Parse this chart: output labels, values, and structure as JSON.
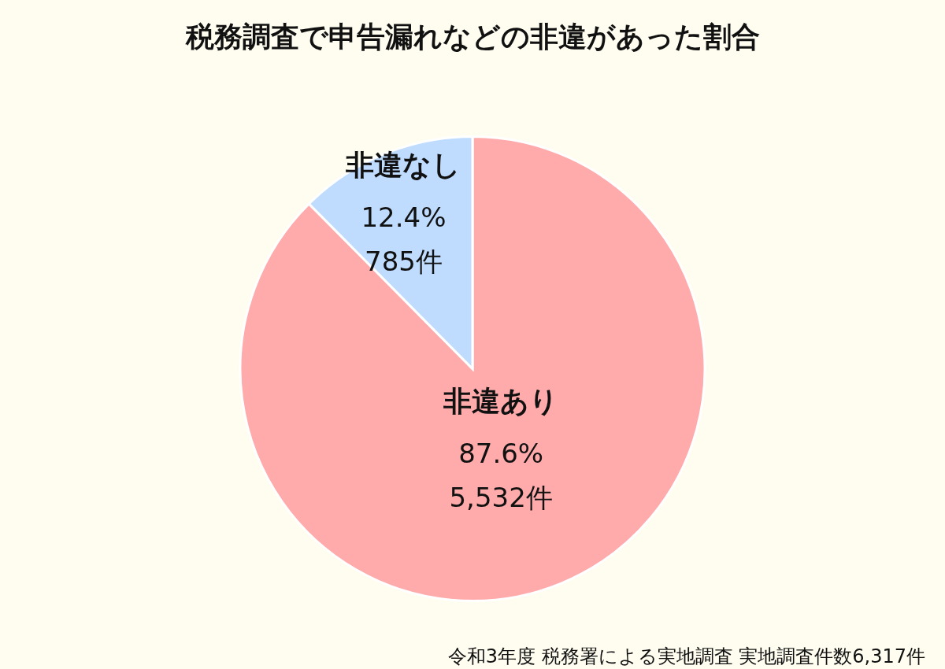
{
  "chart_data": {
    "type": "pie",
    "title": "税務調査で申告漏れなどの非違があった割合",
    "categories": [
      "非違あり",
      "非違なし"
    ],
    "values": [
      5532,
      785
    ],
    "colors": [
      "#ffabab",
      "#bfdcff"
    ],
    "value_labels": [
      "87.6%\n5,532件",
      "12.4%\n785件"
    ],
    "legend": false,
    "annotations": [
      "令和3年度 税務署による実地調査  実地調査件数6,317件"
    ]
  }
}
